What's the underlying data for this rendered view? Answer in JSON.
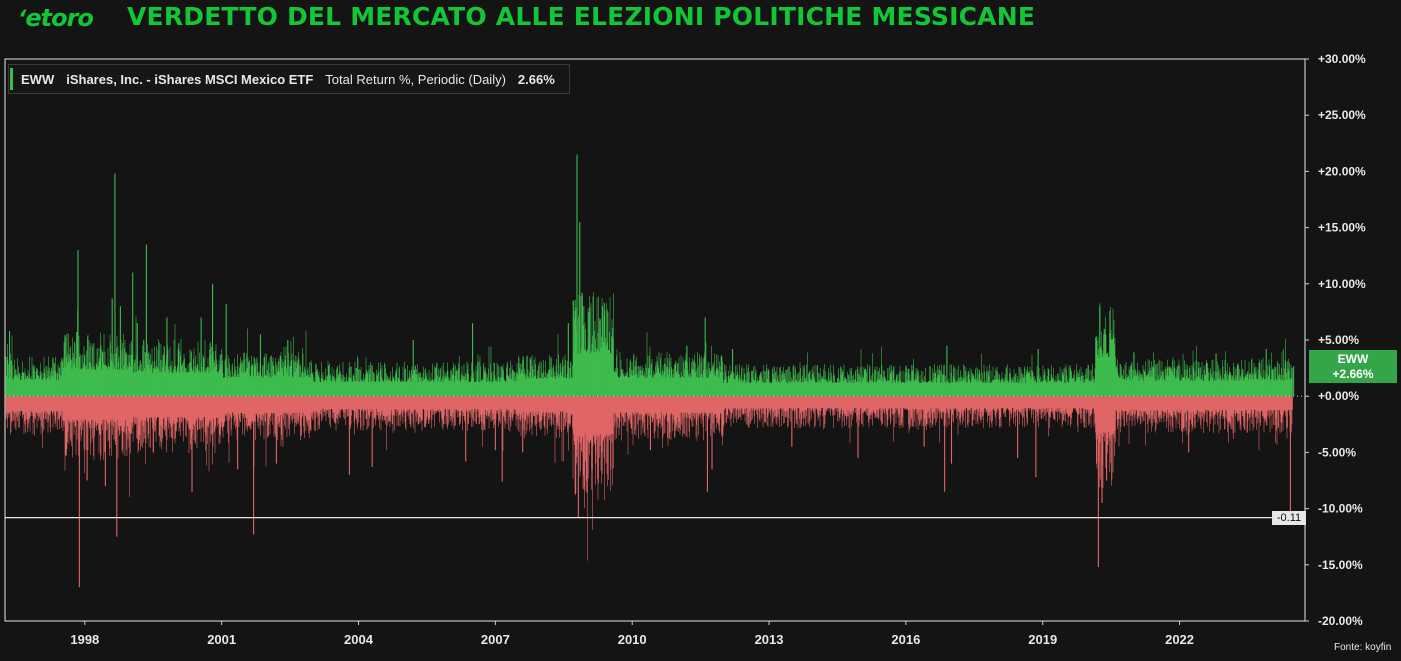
{
  "header": {
    "logo_text": "etoro",
    "title": "VERDETTO DEL MERCATO ALLE ELEZIONI POLITICHE MESSICANE"
  },
  "legend": {
    "ticker": "EWW",
    "name": "iShares, Inc. - iShares MSCI Mexico ETF",
    "metric": "Total Return %, Periodic (Daily)",
    "value": "2.66%"
  },
  "badges": {
    "series_label": "EWW",
    "series_value": "+2.66%",
    "min_label": "-0.11"
  },
  "source": "Fonte: koyfin",
  "colors": {
    "background": "#141414",
    "positive": "#3dbb4d",
    "negative": "#e06666",
    "brand": "#13c636",
    "frame": "#e8e8e8"
  },
  "chart_data": {
    "type": "bar",
    "title": "VERDETTO DEL MERCATO ALLE ELEZIONI POLITICHE MESSICANE",
    "xlabel": "",
    "ylabel": "",
    "ylim": [
      -20,
      30
    ],
    "y_ticks": [
      "+30.00%",
      "+25.00%",
      "+20.00%",
      "+15.00%",
      "+10.00%",
      "+5.00%",
      "+0.00%",
      "-5.00%",
      "-10.00%",
      "-15.00%",
      "-20.00%"
    ],
    "x_ticks": [
      "1998",
      "2001",
      "2004",
      "2007",
      "2010",
      "2013",
      "2016",
      "2019",
      "2022"
    ],
    "x_range": [
      1996.25,
      2024.75
    ],
    "grid": false,
    "legend_position": "top-left",
    "last_value": 2.66,
    "reference_line": -10.8,
    "series": [
      {
        "name": "EWW",
        "volatility_regimes": [
          {
            "from": 1996.25,
            "to": 1997.5,
            "level": 1.6
          },
          {
            "from": 1997.5,
            "to": 1999.0,
            "level": 2.6
          },
          {
            "from": 1999.0,
            "to": 2001.0,
            "level": 2.3
          },
          {
            "from": 2001.0,
            "to": 2003.0,
            "level": 1.8
          },
          {
            "from": 2003.0,
            "to": 2007.5,
            "level": 1.4
          },
          {
            "from": 2007.5,
            "to": 2008.7,
            "level": 1.7
          },
          {
            "from": 2008.7,
            "to": 2009.6,
            "level": 4.2
          },
          {
            "from": 2009.6,
            "to": 2012.0,
            "level": 1.8
          },
          {
            "from": 2012.0,
            "to": 2020.15,
            "level": 1.3
          },
          {
            "from": 2020.15,
            "to": 2020.6,
            "level": 3.8
          },
          {
            "from": 2020.6,
            "to": 2024.75,
            "level": 1.5
          }
        ],
        "spikes": [
          {
            "x": 1996.35,
            "y": 5.8
          },
          {
            "x": 1997.55,
            "y": 4.8
          },
          {
            "x": 1997.85,
            "y": 13.0
          },
          {
            "x": 1997.88,
            "y": -17.0
          },
          {
            "x": 1998.05,
            "y": -7.5
          },
          {
            "x": 1998.45,
            "y": -8.0
          },
          {
            "x": 1998.6,
            "y": 8.7
          },
          {
            "x": 1998.66,
            "y": 19.8
          },
          {
            "x": 1998.7,
            "y": -12.5
          },
          {
            "x": 1998.78,
            "y": 8.0
          },
          {
            "x": 1999.05,
            "y": 11.0
          },
          {
            "x": 1999.15,
            "y": 6.5
          },
          {
            "x": 1999.35,
            "y": 13.5
          },
          {
            "x": 1999.5,
            "y": -5.0
          },
          {
            "x": 1999.8,
            "y": 7.0
          },
          {
            "x": 2000.35,
            "y": -8.5
          },
          {
            "x": 2000.55,
            "y": 7.0
          },
          {
            "x": 2000.8,
            "y": 10.0
          },
          {
            "x": 2001.1,
            "y": 8.2
          },
          {
            "x": 2001.35,
            "y": -6.5
          },
          {
            "x": 2001.7,
            "y": -12.3
          },
          {
            "x": 2001.85,
            "y": 5.5
          },
          {
            "x": 2002.2,
            "y": -6.0
          },
          {
            "x": 2002.45,
            "y": 5.0
          },
          {
            "x": 2003.8,
            "y": -7.0
          },
          {
            "x": 2004.3,
            "y": -6.3
          },
          {
            "x": 2005.2,
            "y": 5.0
          },
          {
            "x": 2006.35,
            "y": -5.8
          },
          {
            "x": 2006.5,
            "y": 6.5
          },
          {
            "x": 2007.0,
            "y": -4.8
          },
          {
            "x": 2007.15,
            "y": -7.6
          },
          {
            "x": 2007.6,
            "y": -5.0
          },
          {
            "x": 2008.6,
            "y": 6.5
          },
          {
            "x": 2008.72,
            "y": 8.5
          },
          {
            "x": 2008.76,
            "y": -8.6
          },
          {
            "x": 2008.79,
            "y": 21.5
          },
          {
            "x": 2008.82,
            "y": -10.8
          },
          {
            "x": 2008.85,
            "y": 15.5
          },
          {
            "x": 2008.9,
            "y": 9.2
          },
          {
            "x": 2008.95,
            "y": -8.0
          },
          {
            "x": 2009.05,
            "y": 7.5
          },
          {
            "x": 2009.2,
            "y": -6.0
          },
          {
            "x": 2009.35,
            "y": 8.0
          },
          {
            "x": 2010.4,
            "y": -4.8
          },
          {
            "x": 2011.2,
            "y": 4.5
          },
          {
            "x": 2011.6,
            "y": 7.0
          },
          {
            "x": 2011.65,
            "y": -8.5
          },
          {
            "x": 2011.75,
            "y": -6.5
          },
          {
            "x": 2012.2,
            "y": 4.2
          },
          {
            "x": 2013.5,
            "y": -4.5
          },
          {
            "x": 2014.95,
            "y": -5.5
          },
          {
            "x": 2016.4,
            "y": -4.5
          },
          {
            "x": 2016.85,
            "y": -8.5
          },
          {
            "x": 2016.9,
            "y": 4.5
          },
          {
            "x": 2017.0,
            "y": -6.0
          },
          {
            "x": 2018.45,
            "y": -5.5
          },
          {
            "x": 2018.85,
            "y": -7.2
          },
          {
            "x": 2018.9,
            "y": 4.2
          },
          {
            "x": 2020.18,
            "y": -6.0
          },
          {
            "x": 2020.22,
            "y": -15.2
          },
          {
            "x": 2020.25,
            "y": 8.0
          },
          {
            "x": 2020.3,
            "y": -9.5
          },
          {
            "x": 2020.35,
            "y": 6.0
          },
          {
            "x": 2020.4,
            "y": -7.5
          },
          {
            "x": 2020.5,
            "y": 5.0
          },
          {
            "x": 2021.0,
            "y": 3.9
          },
          {
            "x": 2022.2,
            "y": -5.0
          },
          {
            "x": 2022.8,
            "y": 3.8
          },
          {
            "x": 2023.9,
            "y": 4.2
          },
          {
            "x": 2024.43,
            "y": -10.8
          },
          {
            "x": 2024.5,
            "y": 2.66
          }
        ]
      }
    ]
  }
}
